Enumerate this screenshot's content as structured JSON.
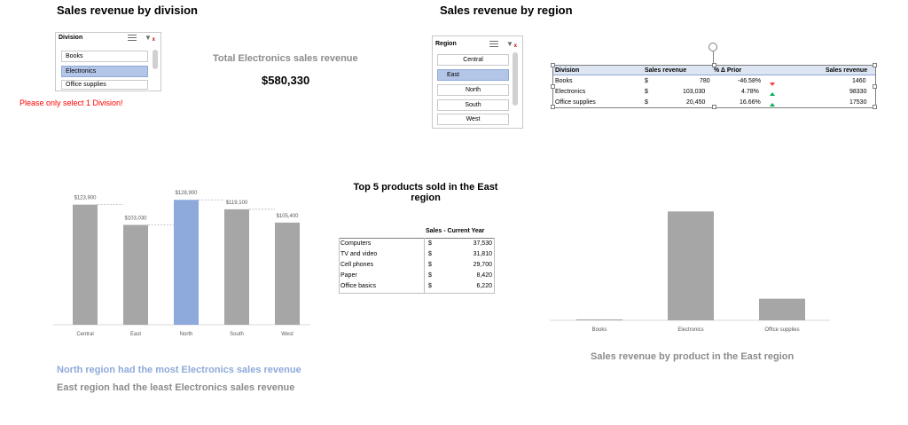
{
  "division_section": {
    "title": "Sales revenue by division",
    "slicer": {
      "header": "Division",
      "items": [
        {
          "label": "Books",
          "selected": false
        },
        {
          "label": "Electronics",
          "selected": true
        },
        {
          "label": "Office supplies",
          "selected": false
        }
      ]
    },
    "warning": "Please only select 1 Division!",
    "kpi_label": "Total Electronics sales revenue",
    "kpi_value": "$580,330"
  },
  "region_section": {
    "title": "Sales revenue by region",
    "slicer": {
      "header": "Region",
      "items": [
        {
          "label": "Central",
          "selected": false
        },
        {
          "label": "East",
          "selected": true
        },
        {
          "label": "North",
          "selected": false
        },
        {
          "label": "South",
          "selected": false
        },
        {
          "label": "West",
          "selected": false
        }
      ]
    },
    "table": {
      "headers": [
        "Division",
        "Sales revenue",
        "% Δ Prior",
        "Sales revenue"
      ],
      "rows": [
        {
          "division": "Books",
          "currency": "$",
          "revenue": "780",
          "pct": "-46.58%",
          "trend": "down",
          "revenue2": "1460"
        },
        {
          "division": "Electronics",
          "currency": "$",
          "revenue": "103,030",
          "pct": "4.78%",
          "trend": "up",
          "revenue2": "98330"
        },
        {
          "division": "Office supplies",
          "currency": "$",
          "revenue": "20,450",
          "pct": "16.66%",
          "trend": "up",
          "revenue2": "17530"
        }
      ]
    }
  },
  "top5": {
    "title_line1": "Top 5 products sold in the East",
    "title_line2": "region",
    "header": "Sales - Current Year",
    "rows": [
      {
        "product": "Computers",
        "currency": "$",
        "value": "37,530"
      },
      {
        "product": "TV and video",
        "currency": "$",
        "value": "31,810"
      },
      {
        "product": "Cell phones",
        "currency": "$",
        "value": "29,700"
      },
      {
        "product": "Paper",
        "currency": "$",
        "value": "8,420"
      },
      {
        "product": "Office basics",
        "currency": "$",
        "value": "6,220"
      }
    ]
  },
  "insights": {
    "line1": "North region had the most Electronics sales revenue",
    "line2": "East region had the least Electronics sales revenue"
  },
  "east_caption": "Sales revenue by product in the East region",
  "colors": {
    "bar_gray": "#a6a6a6",
    "bar_highlight": "#8ea9db",
    "warning": "#ff0000",
    "up": "#00b050",
    "down": "#ff3b3b"
  },
  "chart_data": [
    {
      "type": "bar",
      "categories": [
        "Central",
        "East",
        "North",
        "South",
        "West"
      ],
      "values": [
        123900,
        103030,
        128900,
        119100,
        105400
      ],
      "data_labels": [
        "$123,900",
        "$103,030",
        "$128,900",
        "$119,100",
        "$105,400"
      ],
      "highlight": "North",
      "ylim": [
        0,
        130000
      ],
      "grid": false
    },
    {
      "type": "bar",
      "categories": [
        "Books",
        "Electronics",
        "Office supplies"
      ],
      "values": [
        780,
        103030,
        20450
      ],
      "ylim": [
        0,
        110000
      ],
      "grid": false
    }
  ]
}
